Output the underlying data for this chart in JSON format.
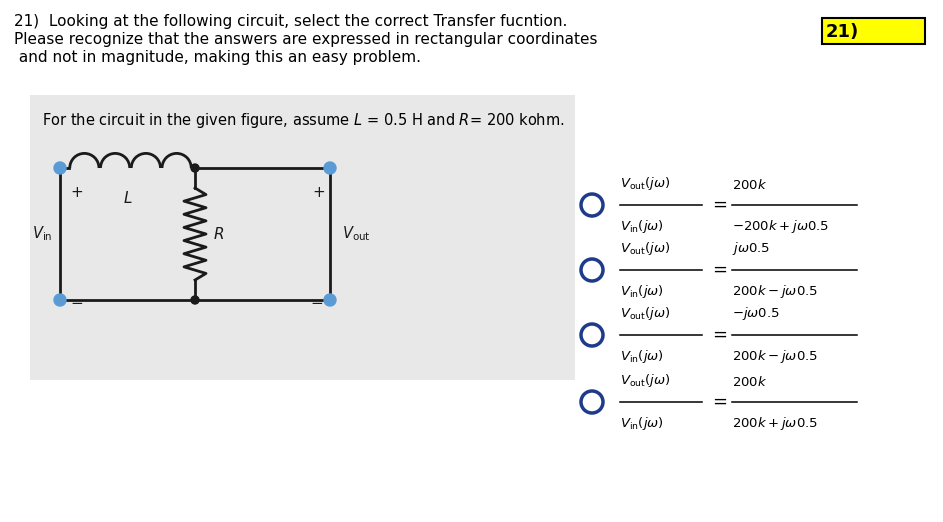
{
  "title_line1": "21)  Looking at the following circuit, select the correct Transfer fucntion.",
  "title_line2": "Please recognize that the answers are expressed in rectangular coordinates",
  "title_line3": " and not in magnitude, making this an easy problem.",
  "answer_label": "21)",
  "answer_box_color": "#ffff00",
  "circuit_caption": "For the circuit in the given figure, assume $L$ = 0.5 H and $R$= 200 kohm.",
  "circuit_bg_color": "#e8e8e8",
  "options": [
    {
      "rhs_num": "200 k",
      "rhs_den": "-200 k+j\\omega 0.5"
    },
    {
      "rhs_num": "j\\omega 0.5",
      "rhs_den": "200 k-j\\omega 0.5"
    },
    {
      "rhs_num": "-j\\omega 0.5",
      "rhs_den": "200 k-j\\omega 0.5"
    },
    {
      "rhs_num": "200 k",
      "rhs_den": "200 k+j\\omega 0.5"
    }
  ],
  "circle_color": "#1e3a8a",
  "text_color": "#000000",
  "bg_color": "#ffffff",
  "line_color": "#1a1a1a",
  "node_color": "#5b9bd5",
  "node_fill": "#5b9bd5"
}
